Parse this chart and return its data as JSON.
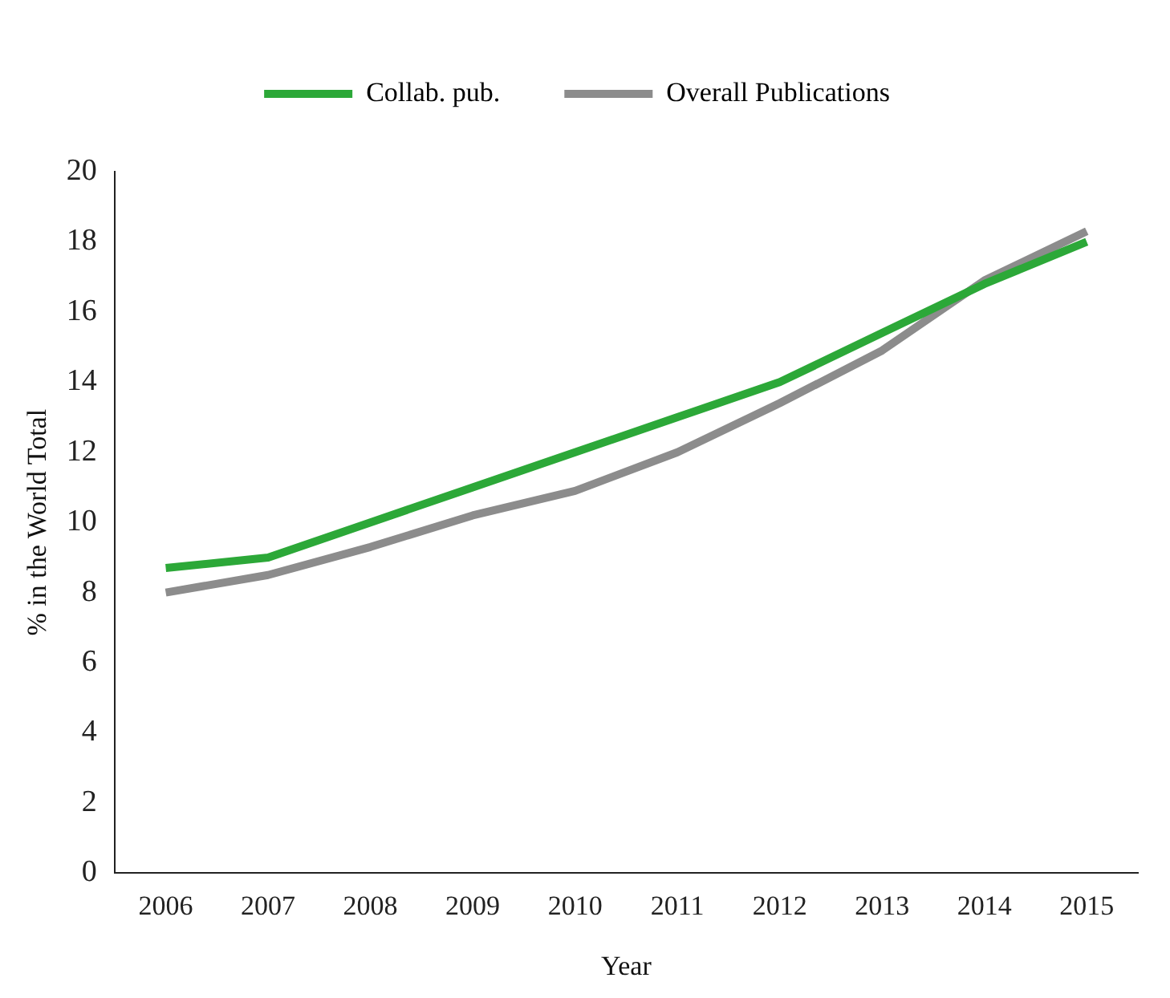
{
  "chart_data": {
    "type": "line",
    "xlabel": "Year",
    "ylabel": "% in the World Total",
    "categories": [
      "2006",
      "2007",
      "2008",
      "2009",
      "2010",
      "2011",
      "2012",
      "2013",
      "2014",
      "2015"
    ],
    "series": [
      {
        "name": "Collab. pub.",
        "color": "#2ca838",
        "values": [
          8.7,
          9.0,
          10.0,
          11.0,
          12.0,
          13.0,
          14.0,
          15.4,
          16.8,
          18.0
        ]
      },
      {
        "name": "Overall Publications",
        "color": "#8c8c8c",
        "values": [
          8.0,
          8.5,
          9.3,
          10.2,
          10.9,
          12.0,
          13.4,
          14.9,
          16.9,
          18.3
        ]
      }
    ],
    "ylim": [
      0,
      20
    ],
    "yticks": [
      0,
      2,
      4,
      6,
      8,
      10,
      12,
      14,
      16,
      18,
      20
    ],
    "grid": false,
    "legend": "top",
    "marker": "none",
    "line_style": "solid"
  }
}
